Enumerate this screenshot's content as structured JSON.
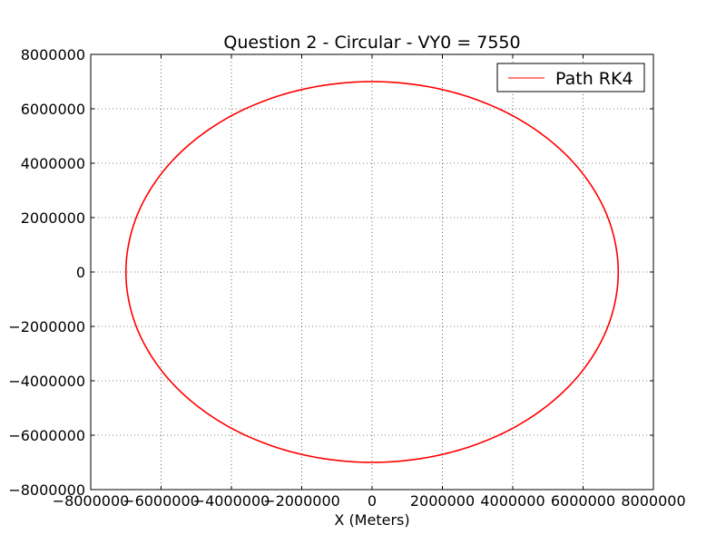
{
  "chart_data": {
    "type": "line",
    "title": "Question 2 - Circular - VY0 = 7550",
    "xlabel": "X (Meters)",
    "ylabel": "",
    "xlim": [
      -8000000,
      8000000
    ],
    "ylim": [
      -8000000,
      8000000
    ],
    "x_ticks": [
      -8000000,
      -6000000,
      -4000000,
      -2000000,
      0,
      2000000,
      4000000,
      6000000,
      8000000
    ],
    "y_ticks": [
      -8000000,
      -6000000,
      -4000000,
      -2000000,
      0,
      2000000,
      4000000,
      6000000,
      8000000
    ],
    "x_tick_labels": [
      "−8000000",
      "−6000000",
      "−4000000",
      "−2000000",
      "0",
      "2000000",
      "4000000",
      "6000000",
      "8000000"
    ],
    "y_tick_labels": [
      "−8000000",
      "−6000000",
      "−4000000",
      "−2000000",
      "0",
      "2000000",
      "4000000",
      "6000000",
      "8000000"
    ],
    "grid": true,
    "legend_position": "top-right",
    "series": [
      {
        "name": "Path RK4",
        "color": "#ff0000",
        "x": [
          7000000,
          6656000,
          5663000,
          4114000,
          2163000,
          0,
          -2163000,
          -4114000,
          -5663000,
          -6656000,
          -7000000,
          -6656000,
          -5663000,
          -4114000,
          -2163000,
          0,
          2163000,
          4114000,
          5663000,
          6656000,
          7000000
        ],
        "y": [
          0,
          2163000,
          4114000,
          5663000,
          6656000,
          7000000,
          6656000,
          5663000,
          4114000,
          2163000,
          0,
          -2163000,
          -4114000,
          -5663000,
          -6656000,
          -7000000,
          -6656000,
          -5663000,
          -4114000,
          -2163000,
          0
        ]
      }
    ]
  }
}
